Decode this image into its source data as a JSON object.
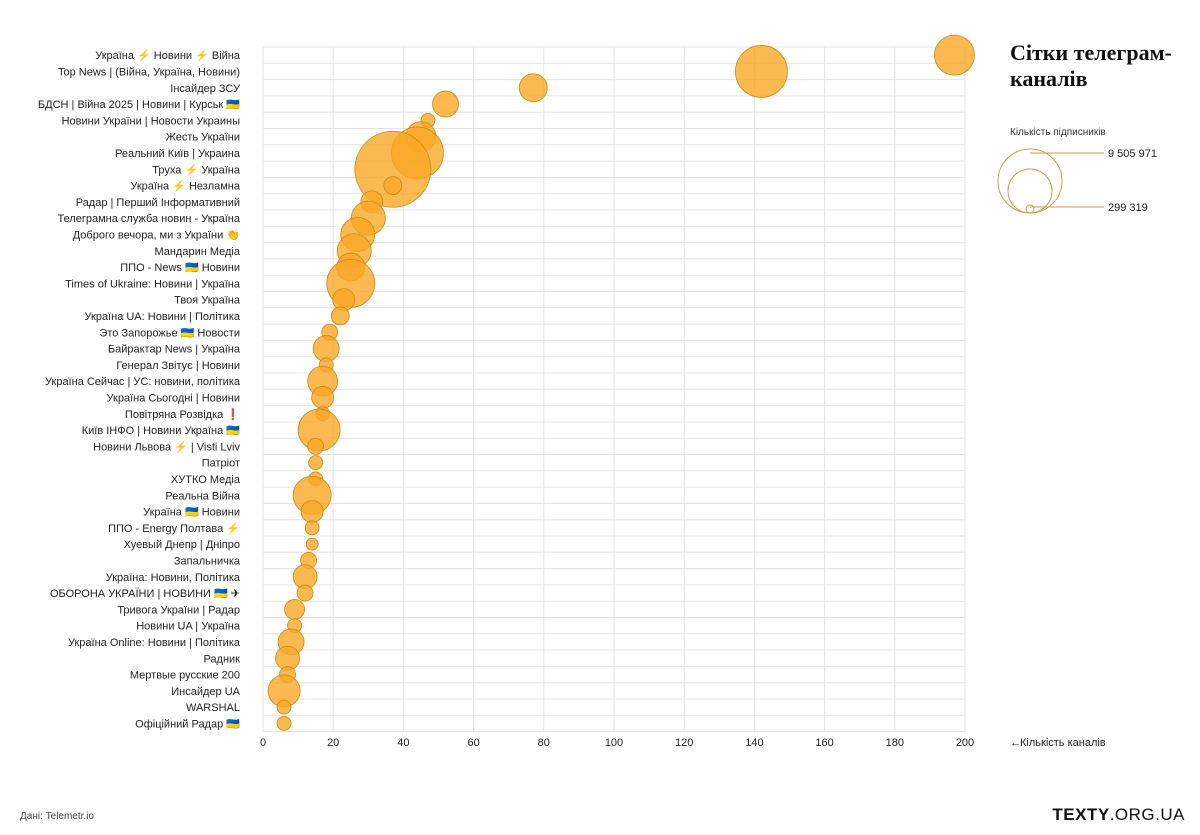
{
  "title": "Сітки телеграм-каналів",
  "size_legend": {
    "title": "Кількість підписників",
    "max_label": "9 505 971",
    "min_label": "299 319",
    "max_value": 9505971,
    "min_value": 299319
  },
  "xaxis_label": "Кількість каналів",
  "source": "Дані: Telemetr.io",
  "brand": {
    "main": "TEXTY",
    "dom": ".ORG.UA"
  },
  "colors": {
    "bubble_fill": "#F9A825",
    "bubble_stroke": "#C98A10",
    "grid": "#E3E3E3",
    "legend": "#C9A24A"
  },
  "chart_data": {
    "type": "scatter",
    "xlabel": "Кількість каналів",
    "xlim": [
      0,
      200
    ],
    "xticks": [
      0,
      20,
      40,
      60,
      80,
      100,
      120,
      140,
      160,
      180,
      200
    ],
    "size_meaning": "Кількість підписників",
    "points": [
      {
        "label": "Україна ⚡ Новини ⚡ Війна",
        "x": 197,
        "r": 20
      },
      {
        "label": "Top News | (Війна, Україна, Новини)",
        "x": 142,
        "r": 26
      },
      {
        "label": "Інсайдер ЗСУ",
        "x": 77,
        "r": 14
      },
      {
        "label": "БДСН | Війна 2025 | Новини | Курськ 🇺🇦",
        "x": 52,
        "r": 13
      },
      {
        "label": "Новини України | Новости Украины",
        "x": 47,
        "r": 7
      },
      {
        "label": "Жесть України",
        "x": 45,
        "r": 15
      },
      {
        "label": "Реальний Київ | Украина",
        "x": 44,
        "r": 26
      },
      {
        "label": "Труха ⚡ Україна",
        "x": 37,
        "r": 38
      },
      {
        "label": "Україна ⚡ Незламна",
        "x": 37,
        "r": 9
      },
      {
        "label": "Радар | Перший Інформативний",
        "x": 31,
        "r": 11
      },
      {
        "label": "Телеграмна служба новин - Україна",
        "x": 30,
        "r": 17
      },
      {
        "label": "Доброго вечора, ми з України 👏",
        "x": 27,
        "r": 17
      },
      {
        "label": "Мандарин Медіа",
        "x": 26,
        "r": 17
      },
      {
        "label": "ППО - News 🇺🇦 Новини",
        "x": 25,
        "r": 14
      },
      {
        "label": "Times of Ukraine: Новини | Україна",
        "x": 25,
        "r": 24
      },
      {
        "label": "Твоя Україна",
        "x": 23,
        "r": 11
      },
      {
        "label": "Україна UA: Новини | Політика",
        "x": 22,
        "r": 9
      },
      {
        "label": "Это Запорожье 🇺🇦 Новости",
        "x": 19,
        "r": 8
      },
      {
        "label": "Байрактар News | Україна",
        "x": 18,
        "r": 13
      },
      {
        "label": "Генерал Звітує | Новини",
        "x": 18,
        "r": 7
      },
      {
        "label": "Україна Сейчас | УС: новини, політика",
        "x": 17,
        "r": 15
      },
      {
        "label": "Україна Сьогодні | Новини",
        "x": 17,
        "r": 11
      },
      {
        "label": "Повітряна Розвідка ❗",
        "x": 17,
        "r": 7
      },
      {
        "label": "Київ ІНФО | Новини Україна 🇺🇦",
        "x": 16,
        "r": 21
      },
      {
        "label": "Новини Львова ⚡ | Visti Lviv",
        "x": 15,
        "r": 8
      },
      {
        "label": "Патріот",
        "x": 15,
        "r": 7
      },
      {
        "label": "ХУТКО Медіа",
        "x": 15,
        "r": 7
      },
      {
        "label": "Реальна Війна",
        "x": 14,
        "r": 19
      },
      {
        "label": "Україна 🇺🇦 Новини",
        "x": 14,
        "r": 11
      },
      {
        "label": "ППО - Energy Полтава ⚡",
        "x": 14,
        "r": 7
      },
      {
        "label": "Хуевый Днепр | Дніпро",
        "x": 14,
        "r": 6
      },
      {
        "label": "Запальничка",
        "x": 13,
        "r": 8
      },
      {
        "label": "Україна: Новини, Політика",
        "x": 12,
        "r": 12
      },
      {
        "label": "ОБОРОНА УКРАЇНИ | НОВИНИ 🇺🇦 ✈",
        "x": 12,
        "r": 8
      },
      {
        "label": "Тривога України | Радар",
        "x": 9,
        "r": 10
      },
      {
        "label": "Новини UA | Україна",
        "x": 9,
        "r": 7
      },
      {
        "label": "Україна Online: Новини | Політика",
        "x": 8,
        "r": 13
      },
      {
        "label": "Радник",
        "x": 7,
        "r": 12
      },
      {
        "label": "Мертвые русские 200",
        "x": 7,
        "r": 8
      },
      {
        "label": "Инсайдер UA",
        "x": 6,
        "r": 16
      },
      {
        "label": "WARSHAL",
        "x": 6,
        "r": 7
      },
      {
        "label": "Офіційний Радар 🇺🇦",
        "x": 6,
        "r": 7
      }
    ]
  }
}
